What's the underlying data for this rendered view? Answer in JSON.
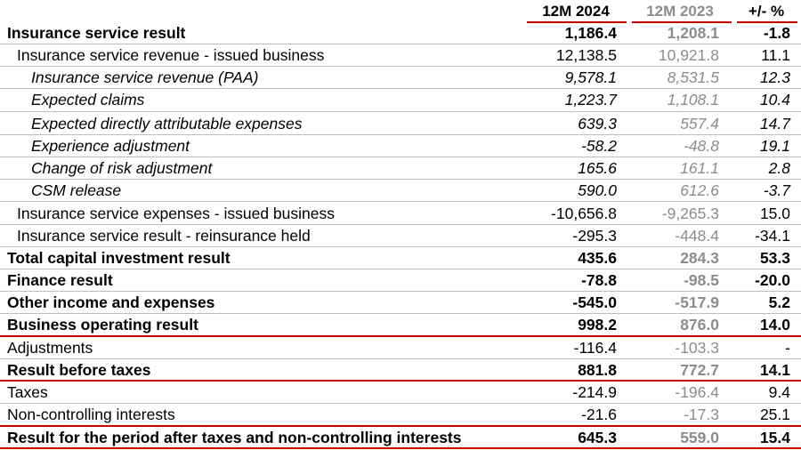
{
  "header": {
    "col1": "12M 2024",
    "col2": "12M 2023",
    "col3": "+/- %"
  },
  "rows": [
    {
      "label": "Insurance service result",
      "v2024": "1,186.4",
      "v2023": "1,208.1",
      "change": "-1.8"
    },
    {
      "label": "Insurance service revenue - issued business",
      "v2024": "12,138.5",
      "v2023": "10,921.8",
      "change": "11.1"
    },
    {
      "label": "Insurance service revenue (PAA)",
      "v2024": "9,578.1",
      "v2023": "8,531.5",
      "change": "12.3"
    },
    {
      "label": "Expected claims",
      "v2024": "1,223.7",
      "v2023": "1,108.1",
      "change": "10.4"
    },
    {
      "label": "Expected directly attributable expenses",
      "v2024": "639.3",
      "v2023": "557.4",
      "change": "14.7"
    },
    {
      "label": "Experience adjustment",
      "v2024": "-58.2",
      "v2023": "-48.8",
      "change": "19.1"
    },
    {
      "label": "Change of risk adjustment",
      "v2024": "165.6",
      "v2023": "161.1",
      "change": "2.8"
    },
    {
      "label": "CSM release",
      "v2024": "590.0",
      "v2023": "612.6",
      "change": "-3.7"
    },
    {
      "label": "Insurance service expenses - issued business",
      "v2024": "-10,656.8",
      "v2023": "-9,265.3",
      "change": "15.0"
    },
    {
      "label": "Insurance service result - reinsurance held",
      "v2024": "-295.3",
      "v2023": "-448.4",
      "change": "-34.1"
    },
    {
      "label": "Total capital investment result",
      "v2024": "435.6",
      "v2023": "284.3",
      "change": "53.3"
    },
    {
      "label": "Finance result",
      "v2024": "-78.8",
      "v2023": "-98.5",
      "change": "-20.0"
    },
    {
      "label": "Other income and expenses",
      "v2024": "-545.0",
      "v2023": "-517.9",
      "change": "5.2"
    },
    {
      "label": "Business operating result",
      "v2024": "998.2",
      "v2023": "876.0",
      "change": "14.0"
    },
    {
      "label": "Adjustments",
      "v2024": "-116.4",
      "v2023": "-103.3",
      "change": "-"
    },
    {
      "label": "Result before taxes",
      "v2024": "881.8",
      "v2023": "772.7",
      "change": "14.1"
    },
    {
      "label": "Taxes",
      "v2024": "-214.9",
      "v2023": "-196.4",
      "change": "9.4"
    },
    {
      "label": "Non-controlling interests",
      "v2024": "-21.6",
      "v2023": "-17.3",
      "change": "25.1"
    },
    {
      "label": "Result for the period after taxes and non-controlling interests",
      "v2024": "645.3",
      "v2023": "559.0",
      "change": "15.4"
    }
  ],
  "colors": {
    "accent_red": "#c00000",
    "prior_year_grey": "#8c8c8c",
    "rule_grey": "#bfbfbf"
  }
}
